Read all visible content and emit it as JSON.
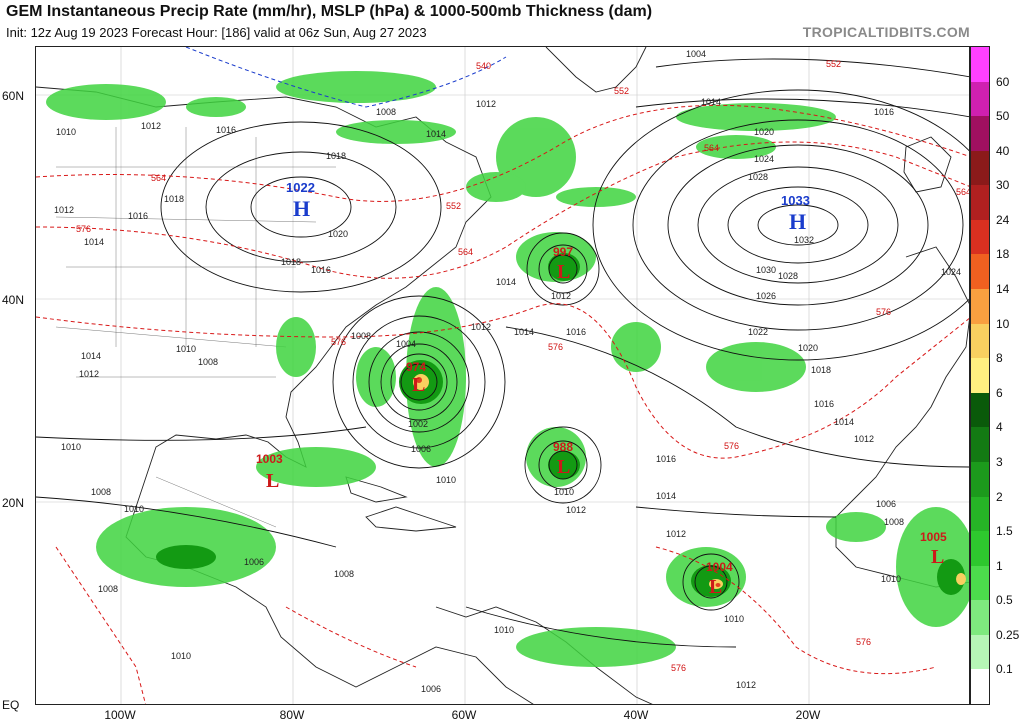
{
  "header": {
    "title": "GEM Instantaneous Precip Rate (mm/hr), MSLP (hPa) & 1000-500mb Thickness (dam)",
    "subtitle": "Init: 12z Aug 19 2023   Forecast Hour: [186]   valid at 06z Sun, Aug 27 2023",
    "brand": "TROPICALTIDBITS.COM"
  },
  "axes": {
    "lat_labels": [
      "60N",
      "40N",
      "20N",
      "EQ"
    ],
    "lon_labels": [
      "100W",
      "80W",
      "60W",
      "40W",
      "20W"
    ]
  },
  "colorbar": {
    "labels": [
      "60",
      "50",
      "40",
      "30",
      "24",
      "18",
      "14",
      "10",
      "8",
      "6",
      "4",
      "3",
      "2",
      "1.5",
      "1",
      "0.5",
      "0.25",
      "0.1"
    ],
    "colors": [
      "#ff40ff",
      "#d020b0",
      "#a01060",
      "#8b1a1a",
      "#b02020",
      "#d83020",
      "#f06020",
      "#f8a040",
      "#f8d060",
      "#fff080",
      "#0a5a0a",
      "#137a13",
      "#1c9a1c",
      "#26b426",
      "#2ec82e",
      "#4cdc4c",
      "#7eea7e",
      "#b6f6b6"
    ]
  },
  "pressure_centers": [
    {
      "type": "H",
      "value": "1022",
      "color": "#1a3ccc"
    },
    {
      "type": "H",
      "value": "1033",
      "color": "#1a3ccc"
    },
    {
      "type": "L",
      "value": "997",
      "color": "#cc1a1a"
    },
    {
      "type": "L",
      "value": "974",
      "color": "#cc1a1a"
    },
    {
      "type": "L",
      "value": "988",
      "color": "#cc1a1a"
    },
    {
      "type": "L",
      "value": "1003",
      "color": "#cc1a1a"
    },
    {
      "type": "L",
      "value": "1004",
      "color": "#cc1a1a"
    },
    {
      "type": "L",
      "value": "1005",
      "color": "#cc1a1a"
    }
  ],
  "isobar_labels": [
    "1004",
    "1006",
    "1008",
    "1010",
    "1012",
    "1014",
    "1016",
    "1018",
    "1020",
    "1022",
    "1024",
    "1026",
    "1028",
    "1030",
    "1032",
    "1002"
  ],
  "thickness_labels": [
    "540",
    "552",
    "564",
    "576"
  ]
}
